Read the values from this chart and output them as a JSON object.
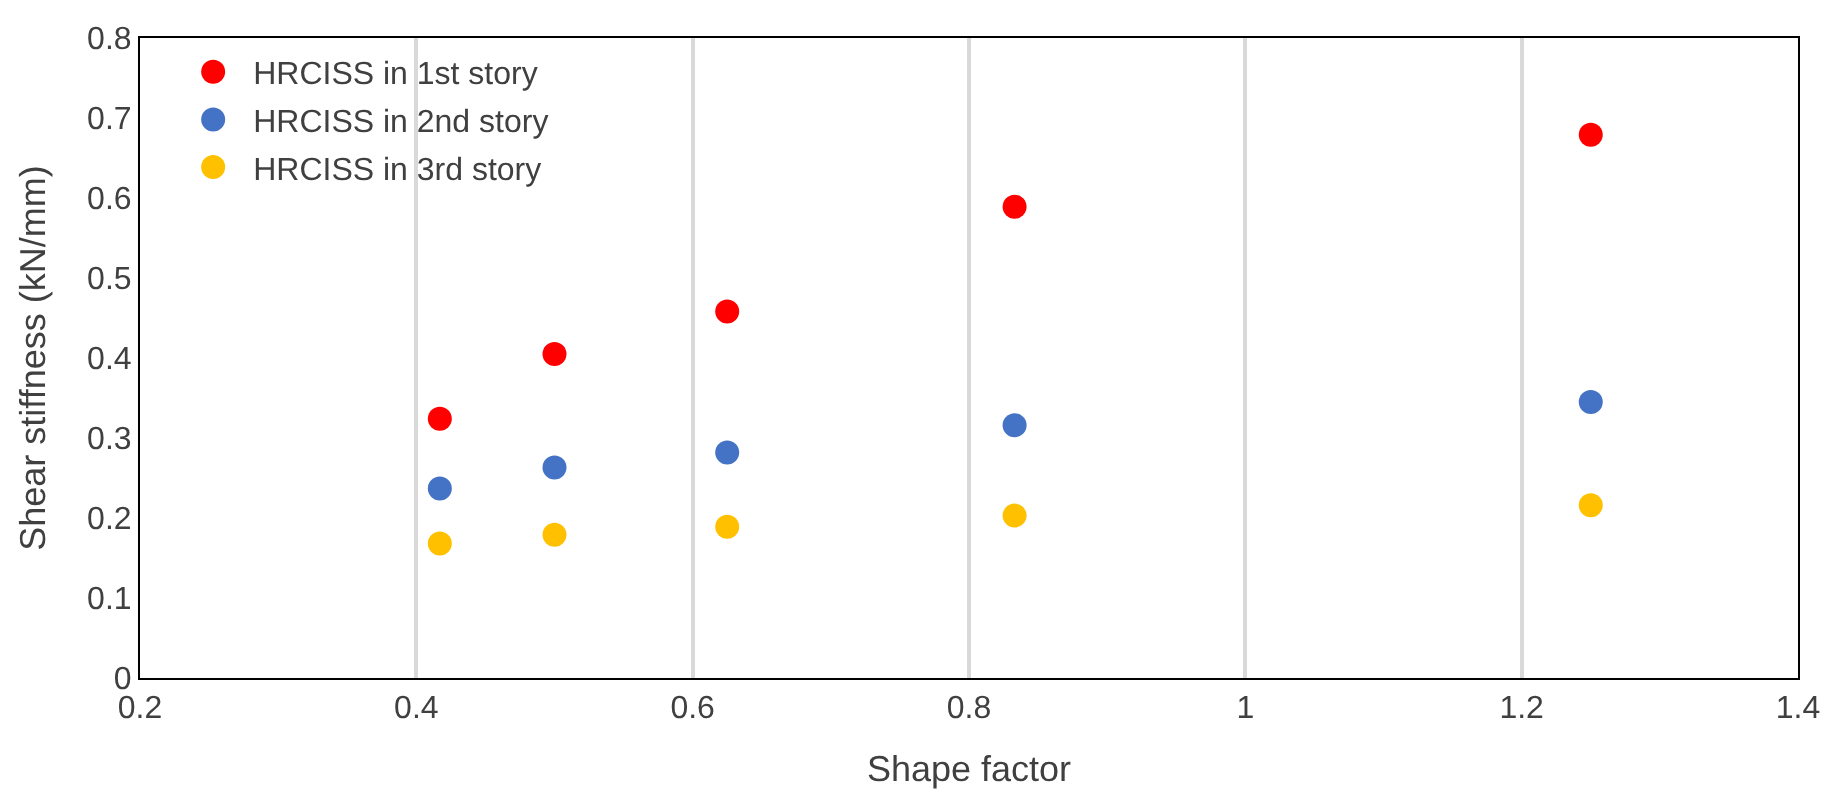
{
  "chart_data": {
    "type": "scatter",
    "xlabel": "Shape factor",
    "ylabel": "Shear stiffness (kN/mm)",
    "x": [
      0.417,
      0.5,
      0.625,
      0.833,
      1.25
    ],
    "series": [
      {
        "name": "HRCISS in 1st story",
        "color": "#ff0000",
        "values": [
          0.324,
          0.405,
          0.458,
          0.589,
          0.679
        ]
      },
      {
        "name": "HRCISS in 2nd story",
        "color": "#4472c4",
        "values": [
          0.237,
          0.263,
          0.282,
          0.316,
          0.345
        ]
      },
      {
        "name": "HRCISS in 3rd story",
        "color": "#ffc000",
        "values": [
          0.168,
          0.179,
          0.189,
          0.203,
          0.216
        ]
      }
    ],
    "xlim": [
      0.2,
      1.4
    ],
    "xticks": [
      0.2,
      0.4,
      0.6,
      0.8,
      1,
      1.2,
      1.4
    ],
    "ylim": [
      0,
      0.8
    ],
    "yticks": [
      0,
      0.1,
      0.2,
      0.3,
      0.4,
      0.5,
      0.6,
      0.7,
      0.8
    ],
    "grid": "x",
    "legend": "top left",
    "marker": "circle"
  }
}
